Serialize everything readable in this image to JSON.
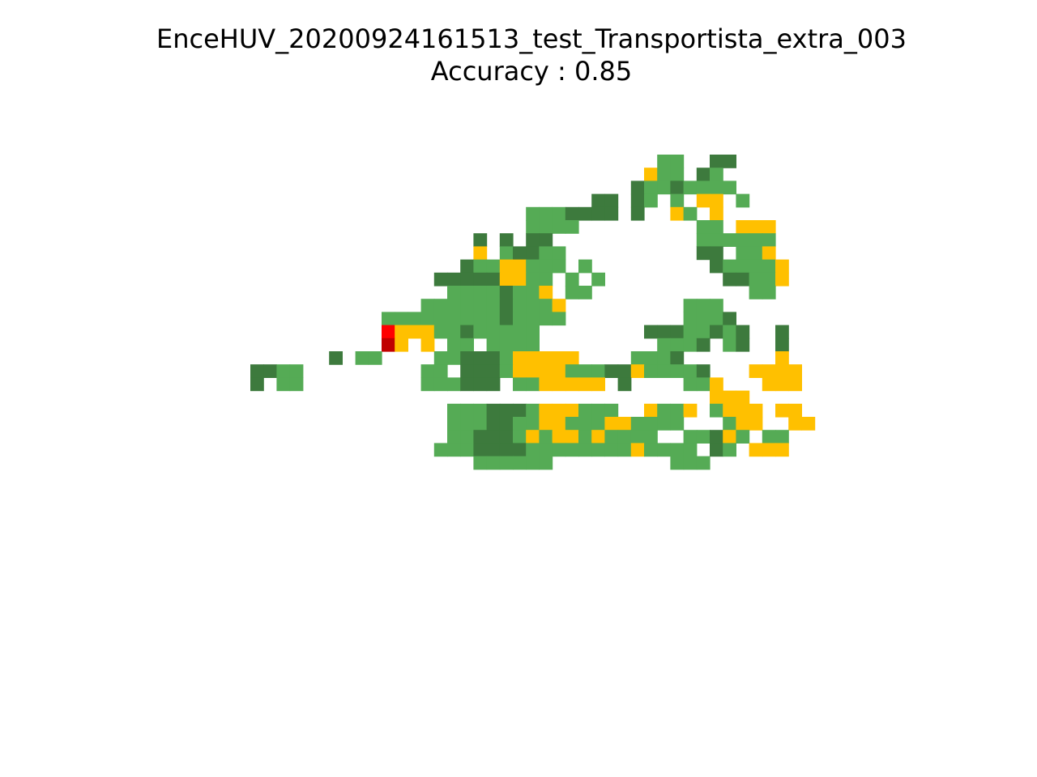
{
  "chart_data": {
    "type": "heatmap",
    "title": "EnceHUV_20200924161513_test_Transportista_extra_003",
    "subtitle": "Accuracy : 0.85",
    "grid": false,
    "axes_visible": false,
    "palette": {
      "D": "#3d7a3d",
      "L": "#55ab55",
      "Y": "#ffc000",
      "R": "#ff0000",
      "K": "#c00000"
    },
    "rows": [
      "....................................LL..DD.....",
      "...................................YLL.DL......",
      "..................................DLLDLLLL.....",
      "...............................DD.DL.L.YY.L....",
      "..........................LLLDDDD.D..YL.Y.....",
      "..........................LLLL.........LL.YYY.",
      "......................D.D.DD...........LLLLLL.",
      "......................Y.LDDLL..........DD.LLY.",
      ".....................DLLYYLLL.L.........DLLLLY.",
      "...................DDDDDYYLL.L.L.........DDLLY.",
      "....................LLLLDLLY.LL............LL.",
      "..................LLLLLLDLLLY.........LLL.....",
      "...............LLLLLLLLLDLLLL.........LLLD.....",
      "...............RYYYLLDLLLLL........DDDLLDLD..D.",
      "...............KY.Y.LL.LLLL.........LLLD.LD..D.",
      "...........D.LL....LLDDDLYYYYY....LLLD.......Y.",
      ".....DDLL.........LL.DDDLYYYYLLLDDYLLLLD...YYYY",
      ".....D.LL.........LLLDDD.LLYYYYY.D....LLY...YYY",
      "........................................YYY....",
      "....................LLLDDDLYYYLLL..YLLY.LYYY.YY",
      "....................LLLDDLLYYLLLYYLLLL...LYY..YY",
      "....................LLDDDLYLYYLYLLLL..LLDYL.LL.",
      "...................LLLDDDDLLLLLLLLYLLLL.DL.YYY.",
      "......................LLLLLL.........LLL......."
    ]
  }
}
